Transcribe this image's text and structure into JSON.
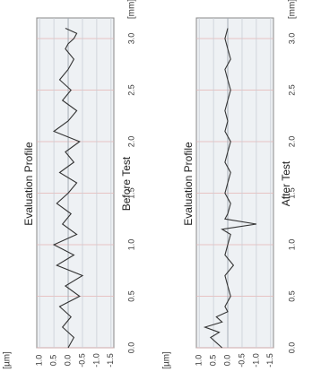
{
  "chart_data": [
    {
      "type": "line",
      "title": "Evaluation Profile",
      "caption": "Before Test",
      "x_unit": "[mm]",
      "y_unit": "[µm]",
      "xlim": [
        0.0,
        3.2
      ],
      "ylim": [
        -1.6,
        1.1
      ],
      "xticks": [
        "0.0",
        "0.5",
        "1.0",
        "1.5",
        "2.0",
        "2.5",
        "3.0"
      ],
      "yticks": [
        "1.0",
        "0.5",
        "0.0",
        "-0.5",
        "-1.0",
        "-1.5"
      ],
      "grid": true,
      "series": [
        {
          "x": [
            0.0,
            0.1,
            0.2,
            0.3,
            0.4,
            0.5,
            0.6,
            0.7,
            0.8,
            0.9,
            1.0,
            1.1,
            1.2,
            1.3,
            1.4,
            1.5,
            1.6,
            1.7,
            1.8,
            1.9,
            2.0,
            2.1,
            2.2,
            2.3,
            2.4,
            2.5,
            2.6,
            2.7,
            2.8,
            2.9,
            2.95,
            3.0,
            3.05,
            3.1
          ],
          "y": [
            0.0,
            -0.2,
            0.2,
            -0.1,
            0.3,
            -0.4,
            0.1,
            -0.5,
            0.4,
            -0.2,
            0.5,
            -0.3,
            0.2,
            -0.1,
            0.4,
            0.0,
            -0.3,
            0.3,
            -0.2,
            0.1,
            -0.4,
            0.5,
            0.0,
            -0.3,
            0.2,
            -0.1,
            0.3,
            0.0,
            -0.2,
            0.1,
            0.0,
            -0.2,
            -0.3,
            0.1
          ]
        }
      ]
    },
    {
      "type": "line",
      "title": "Evaluation Profile",
      "caption": "After Test",
      "x_unit": "[mm]",
      "y_unit": "[µm]",
      "xlim": [
        0.0,
        3.2
      ],
      "ylim": [
        -1.6,
        1.1
      ],
      "xticks": [
        "0.0",
        "0.5",
        "1.0",
        "1.5",
        "2.0",
        "2.5",
        "3.0"
      ],
      "yticks": [
        "1.0",
        "0.5",
        "0.0",
        "-0.5",
        "-1.0",
        "-1.5"
      ],
      "grid": true,
      "series": [
        {
          "x": [
            0.0,
            0.05,
            0.1,
            0.15,
            0.2,
            0.25,
            0.3,
            0.35,
            0.4,
            0.5,
            0.6,
            0.7,
            0.8,
            0.9,
            1.0,
            1.1,
            1.15,
            1.2,
            1.25,
            1.3,
            1.4,
            1.5,
            1.6,
            1.7,
            1.8,
            1.9,
            2.0,
            2.1,
            2.2,
            2.3,
            2.4,
            2.5,
            2.6,
            2.7,
            2.8,
            2.9,
            3.0,
            3.1
          ],
          "y": [
            0.2,
            0.4,
            0.6,
            0.3,
            0.8,
            0.2,
            0.4,
            0.0,
            0.1,
            -0.1,
            0.0,
            0.1,
            -0.2,
            0.1,
            0.0,
            -0.1,
            0.2,
            -1.0,
            0.1,
            0.0,
            -0.1,
            0.1,
            0.0,
            -0.1,
            0.1,
            0.0,
            -0.1,
            0.1,
            0.0,
            0.1,
            0.0,
            -0.1,
            0.0,
            0.1,
            -0.1,
            0.0,
            0.1,
            0.0
          ]
        }
      ]
    }
  ]
}
